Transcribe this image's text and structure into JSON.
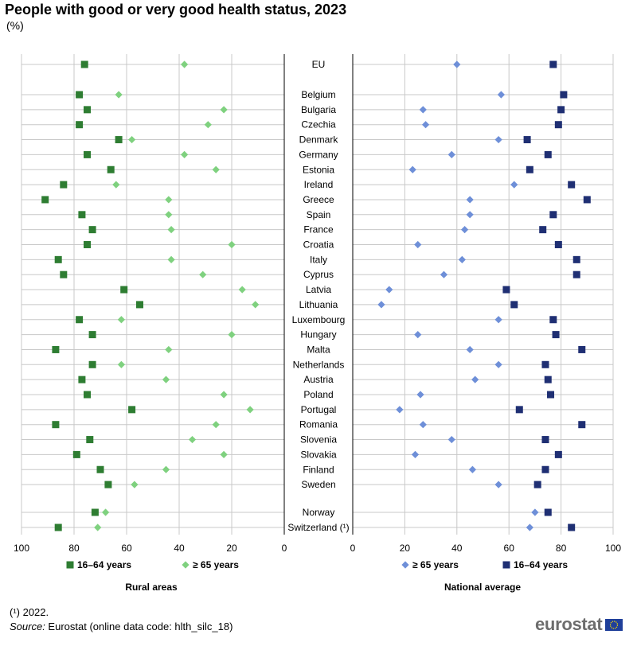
{
  "title": "People with good or very good health status, 2023",
  "subtitle": "(%)",
  "footnote": "(¹) 2022.",
  "source_label": "Source:",
  "source_text": " Eurostat (online data code: hlth_silc_18)",
  "logo_text": "eurostat",
  "colors": {
    "rural_1664": "#2e7d32",
    "rural_65": "#7fd17f",
    "nat_65": "#6e8fd8",
    "nat_1664": "#1f2f73",
    "grid": "#c8c8c8",
    "axis": "#000000"
  },
  "chart_data": [
    {
      "type": "scatter",
      "panel": "Rural areas",
      "xlabel": "Rural areas",
      "xlim": [
        0,
        100
      ],
      "x_reversed": true,
      "xticks": [
        "100",
        "80",
        "60",
        "40",
        "20",
        "0"
      ],
      "legend": "bottom",
      "grid": true,
      "series": [
        {
          "name": "16–64 years",
          "marker": "square",
          "values": [
            76,
            78,
            75,
            78,
            63,
            75,
            66,
            84,
            91,
            77,
            73,
            75,
            86,
            84,
            61,
            55,
            78,
            73,
            87,
            73,
            77,
            75,
            58,
            87,
            74,
            79,
            70,
            67,
            72,
            86
          ]
        },
        {
          "name": "≥ 65 years",
          "marker": "diamond",
          "values": [
            38,
            63,
            23,
            29,
            58,
            38,
            26,
            64,
            44,
            44,
            43,
            20,
            43,
            31,
            16,
            11,
            62,
            20,
            44,
            62,
            45,
            23,
            13,
            26,
            35,
            23,
            45,
            57,
            68,
            71
          ]
        }
      ]
    },
    {
      "type": "scatter",
      "panel": "National average",
      "xlabel": "National average",
      "xlim": [
        0,
        100
      ],
      "x_reversed": false,
      "xticks": [
        "0",
        "20",
        "40",
        "60",
        "80",
        "100"
      ],
      "legend": "bottom",
      "grid": true,
      "series": [
        {
          "name": "≥ 65 years",
          "marker": "diamond",
          "values": [
            40,
            57,
            27,
            28,
            56,
            38,
            23,
            62,
            45,
            45,
            43,
            25,
            42,
            35,
            14,
            11,
            56,
            25,
            45,
            56,
            47,
            26,
            18,
            27,
            38,
            24,
            46,
            56,
            70,
            68
          ]
        },
        {
          "name": "16–64 years",
          "marker": "square",
          "values": [
            77,
            81,
            80,
            79,
            67,
            75,
            68,
            84,
            90,
            77,
            73,
            79,
            86,
            86,
            59,
            62,
            77,
            78,
            88,
            74,
            75,
            76,
            64,
            88,
            74,
            79,
            74,
            71,
            75,
            84
          ]
        }
      ]
    }
  ],
  "countries": [
    "EU",
    "Belgium",
    "Bulgaria",
    "Czechia",
    "Denmark",
    "Germany",
    "Estonia",
    "Ireland",
    "Greece",
    "Spain",
    "France",
    "Croatia",
    "Italy",
    "Cyprus",
    "Latvia",
    "Lithuania",
    "Luxembourg",
    "Hungary",
    "Malta",
    "Netherlands",
    "Austria",
    "Poland",
    "Portugal",
    "Romania",
    "Slovenia",
    "Slovakia",
    "Finland",
    "Sweden",
    "Norway",
    "Switzerland (¹)"
  ]
}
